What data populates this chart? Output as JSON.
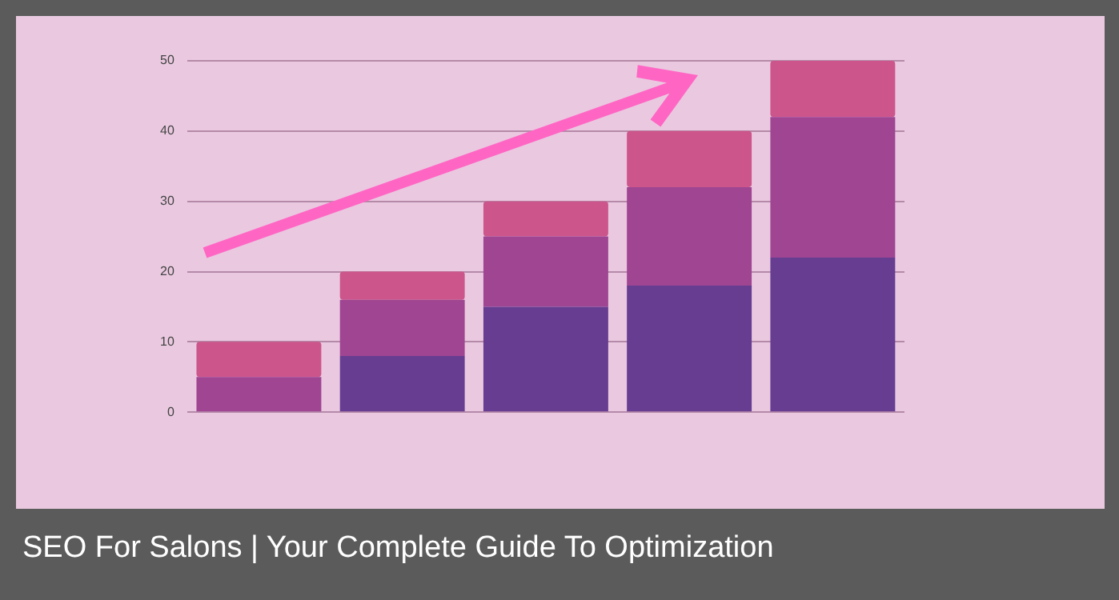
{
  "chart_data": {
    "type": "bar",
    "title": "SEO For Salons | Your Complete Guide To Optimization",
    "categories": [
      null,
      null,
      null,
      null,
      null
    ],
    "stacked": true,
    "series": [
      {
        "color": "#673d91",
        "values": [
          0,
          8,
          15,
          18,
          22
        ]
      },
      {
        "color": "#9f4592",
        "values": [
          5,
          8,
          10,
          14,
          20
        ]
      },
      {
        "color": "#cc558b",
        "values": [
          5,
          4,
          5,
          8,
          8
        ]
      }
    ],
    "ylim": [
      0,
      50
    ],
    "yticks": [
      0,
      10,
      20,
      30,
      40,
      50
    ],
    "grid": "y",
    "legend": false
  }
}
